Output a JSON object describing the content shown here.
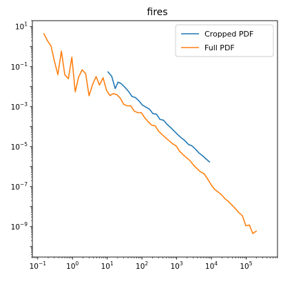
{
  "chart_data": {
    "type": "line",
    "title": "fires",
    "xlabel": "",
    "ylabel": "",
    "xscale": "log",
    "yscale": "log",
    "xlim": [
      0.07,
      800000
    ],
    "ylim": [
      3e-11,
      20
    ],
    "xticks": [
      {
        "base": "10",
        "exp": "−1",
        "value": 0.1
      },
      {
        "base": "10",
        "exp": "0",
        "value": 1
      },
      {
        "base": "10",
        "exp": "1",
        "value": 10
      },
      {
        "base": "10",
        "exp": "2",
        "value": 100
      },
      {
        "base": "10",
        "exp": "3",
        "value": 1000
      },
      {
        "base": "10",
        "exp": "4",
        "value": 10000
      },
      {
        "base": "10",
        "exp": "5",
        "value": 100000
      }
    ],
    "yticks": [
      {
        "base": "10",
        "exp": "1",
        "value": 10
      },
      {
        "base": "10",
        "exp": "−1",
        "value": 0.1
      },
      {
        "base": "10",
        "exp": "−3",
        "value": 0.001
      },
      {
        "base": "10",
        "exp": "−5",
        "value": 1e-05
      },
      {
        "base": "10",
        "exp": "−7",
        "value": 1e-07
      },
      {
        "base": "10",
        "exp": "−9",
        "value": 1e-09
      }
    ],
    "grid": false,
    "legend_position": "top-right",
    "series": [
      {
        "name": "Cropped PDF",
        "color": "#1f77b4",
        "x": [
          10.5,
          13.5,
          17,
          20.5,
          25.5,
          33,
          42,
          52,
          64,
          81,
          103,
          130,
          165,
          207,
          262,
          331,
          418,
          530,
          670,
          850,
          1070,
          1350,
          1720,
          2170,
          2750,
          3480,
          4400,
          5570,
          7050,
          8900
        ],
        "y": [
          0.055,
          0.033,
          0.008,
          0.017,
          0.014,
          0.009,
          0.0055,
          0.0032,
          0.0029,
          0.002,
          0.0012,
          0.00095,
          0.00075,
          0.00045,
          0.00042,
          0.00023,
          0.00021,
          0.00013,
          9e-05,
          6e-05,
          4e-05,
          2.8e-05,
          2e-05,
          1.3e-05,
          1.1e-05,
          7.5e-06,
          4.8e-06,
          3.5e-06,
          2.4e-06,
          1.7e-06
        ]
      },
      {
        "name": "Full PDF",
        "color": "#ff7f0e",
        "x": [
          0.15,
          0.19,
          0.24,
          0.3,
          0.38,
          0.48,
          0.6,
          0.76,
          0.96,
          1.2,
          1.5,
          1.9,
          2.4,
          3.0,
          3.8,
          4.8,
          6.0,
          7.6,
          9.6,
          12,
          15,
          19,
          24,
          30,
          38,
          48,
          60,
          76,
          96,
          120,
          150,
          190,
          240,
          300,
          380,
          480,
          600,
          760,
          960,
          1200,
          1520,
          1920,
          2420,
          3050,
          3850,
          4850,
          6100,
          7700,
          9700,
          12200,
          15400,
          19400,
          24500,
          30900,
          39000,
          49000,
          62000,
          78000,
          98000,
          124000,
          156000,
          197000
        ],
        "y": [
          4.5,
          2.0,
          1.1,
          0.2,
          0.04,
          0.6,
          0.04,
          0.025,
          0.3,
          0.0055,
          0.03,
          0.07,
          0.045,
          0.0035,
          0.013,
          0.032,
          0.012,
          0.028,
          0.0065,
          0.0036,
          0.0045,
          0.004,
          0.0026,
          0.0013,
          0.0011,
          0.0011,
          0.0006,
          0.0005,
          0.0005,
          0.00028,
          0.00018,
          0.00012,
          0.00011,
          6e-05,
          4e-05,
          2.8e-05,
          2e-05,
          1.4e-05,
          1.1e-05,
          6e-06,
          4e-06,
          2.8e-06,
          2e-06,
          1.2e-06,
          8e-07,
          5.5e-07,
          4.5e-07,
          2.5e-07,
          1.3e-07,
          7.5e-08,
          5.5e-08,
          4e-08,
          2.5e-08,
          1.8e-08,
          1.2e-08,
          8e-09,
          5e-09,
          3.5e-09,
          1.1e-09,
          1.2e-09,
          4.5e-10,
          6e-10
        ]
      }
    ]
  }
}
